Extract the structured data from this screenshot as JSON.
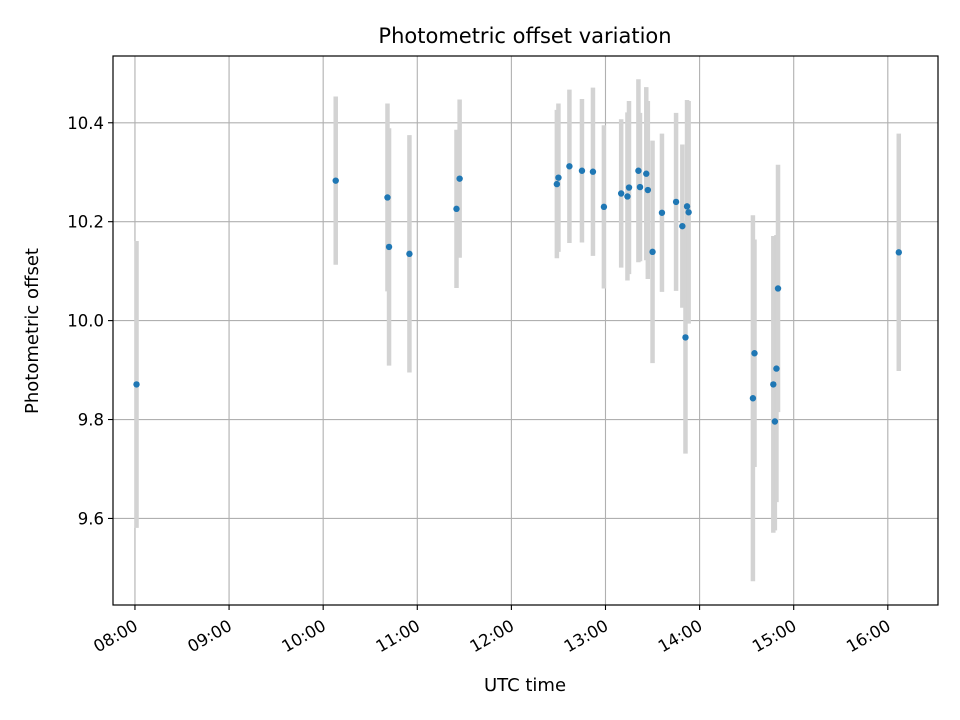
{
  "chart_data": {
    "type": "scatter",
    "title": "Photometric offset variation",
    "xlabel": "UTC time",
    "ylabel": "Photometric offset",
    "xlim": [
      "07:46",
      "16:32"
    ],
    "ylim": [
      9.425,
      10.535
    ],
    "grid": true,
    "x_ticks": [
      "08:00",
      "09:00",
      "10:00",
      "11:00",
      "12:00",
      "13:00",
      "14:00",
      "15:00",
      "16:00"
    ],
    "y_ticks": [
      9.6,
      9.8,
      10.0,
      10.2,
      10.4
    ],
    "y_tick_labels": [
      "9.6",
      "9.8",
      "10.0",
      "10.2",
      "10.4"
    ],
    "point_color": "#1f77b4",
    "errorbar_color": "#d3d3d3",
    "points": [
      {
        "t": "08:01",
        "y": 9.871,
        "err": 0.29
      },
      {
        "t": "10:08",
        "y": 10.283,
        "err": 0.17
      },
      {
        "t": "10:41",
        "y": 10.249,
        "err": 0.19
      },
      {
        "t": "10:42",
        "y": 10.149,
        "err": 0.24
      },
      {
        "t": "10:55",
        "y": 10.135,
        "err": 0.24
      },
      {
        "t": "11:25",
        "y": 10.226,
        "err": 0.16
      },
      {
        "t": "11:27",
        "y": 10.287,
        "err": 0.16
      },
      {
        "t": "12:29",
        "y": 10.276,
        "err": 0.15
      },
      {
        "t": "12:30",
        "y": 10.289,
        "err": 0.15
      },
      {
        "t": "12:37",
        "y": 10.312,
        "err": 0.155
      },
      {
        "t": "12:45",
        "y": 10.303,
        "err": 0.145
      },
      {
        "t": "12:52",
        "y": 10.301,
        "err": 0.17
      },
      {
        "t": "12:59",
        "y": 10.23,
        "err": 0.165
      },
      {
        "t": "13:10",
        "y": 10.257,
        "err": 0.15
      },
      {
        "t": "13:14",
        "y": 10.251,
        "err": 0.17
      },
      {
        "t": "13:15",
        "y": 10.269,
        "err": 0.175
      },
      {
        "t": "13:21",
        "y": 10.303,
        "err": 0.185
      },
      {
        "t": "13:22",
        "y": 10.27,
        "err": 0.15
      },
      {
        "t": "13:26",
        "y": 10.297,
        "err": 0.175
      },
      {
        "t": "13:27",
        "y": 10.264,
        "err": 0.18
      },
      {
        "t": "13:30",
        "y": 10.139,
        "err": 0.225
      },
      {
        "t": "13:36",
        "y": 10.218,
        "err": 0.16
      },
      {
        "t": "13:45",
        "y": 10.24,
        "err": 0.18
      },
      {
        "t": "13:49",
        "y": 10.191,
        "err": 0.165
      },
      {
        "t": "13:51",
        "y": 9.966,
        "err": 0.235
      },
      {
        "t": "13:52",
        "y": 10.231,
        "err": 0.215
      },
      {
        "t": "13:53",
        "y": 10.219,
        "err": 0.225
      },
      {
        "t": "14:34",
        "y": 9.843,
        "err": 0.37
      },
      {
        "t": "14:35",
        "y": 9.934,
        "err": 0.23
      },
      {
        "t": "14:47",
        "y": 9.871,
        "err": 0.3
      },
      {
        "t": "14:48",
        "y": 9.796,
        "err": 0.22
      },
      {
        "t": "14:49",
        "y": 9.903,
        "err": 0.27
      },
      {
        "t": "14:50",
        "y": 10.065,
        "err": 0.25
      },
      {
        "t": "16:07",
        "y": 10.138,
        "err": 0.24
      }
    ]
  }
}
